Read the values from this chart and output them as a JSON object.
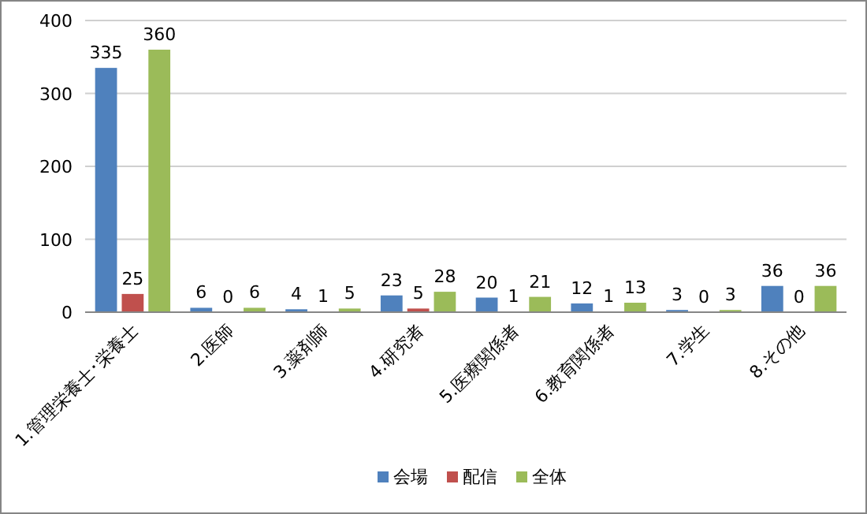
{
  "chart_data": {
    "type": "bar",
    "categories": [
      "1.管理栄養士･栄養士",
      "2.医師",
      "3.薬剤師",
      "4.研究者",
      "5.医療関係者",
      "6.教育関係者",
      "7.学生",
      "8.その他"
    ],
    "series": [
      {
        "name": "会場",
        "color": "#4f81bd",
        "values": [
          335,
          6,
          4,
          23,
          20,
          12,
          3,
          36
        ]
      },
      {
        "name": "配信",
        "color": "#c0504d",
        "values": [
          25,
          0,
          1,
          5,
          1,
          1,
          0,
          0
        ]
      },
      {
        "name": "全体",
        "color": "#9bbb59",
        "values": [
          360,
          6,
          5,
          28,
          21,
          13,
          3,
          36
        ]
      }
    ],
    "ylim": [
      0,
      400
    ],
    "yticks": [
      0,
      100,
      200,
      300,
      400
    ],
    "grid": "y",
    "legend": "bottom",
    "data_labels": true
  }
}
